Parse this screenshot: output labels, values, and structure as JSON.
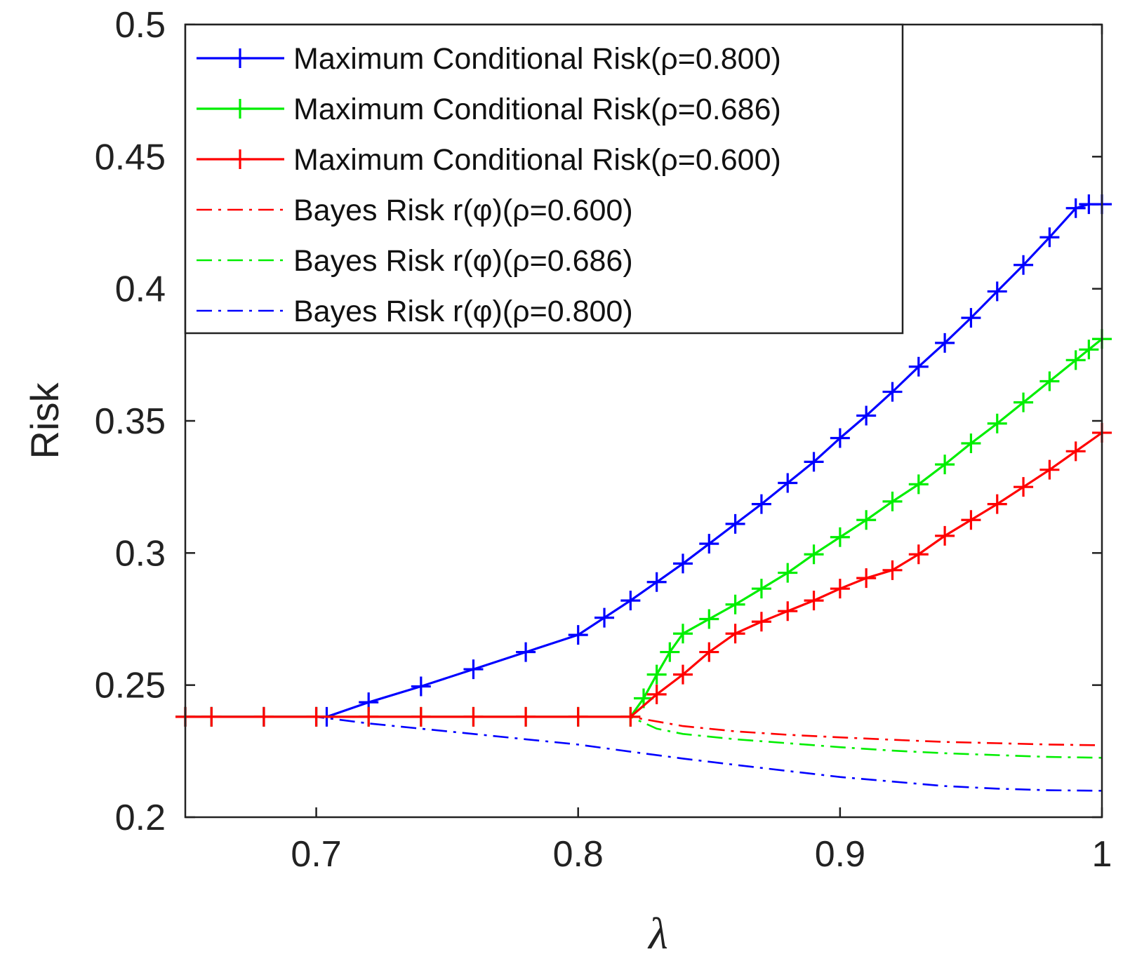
{
  "chart_data": {
    "type": "line",
    "title": "",
    "xlabel": "λ",
    "ylabel": "Risk",
    "xlim": [
      0.65,
      1.0
    ],
    "ylim": [
      0.2,
      0.5
    ],
    "xticks": [
      0.7,
      0.8,
      0.9,
      1.0
    ],
    "xtick_labels": [
      "0.7",
      "0.8",
      "0.9",
      "1"
    ],
    "yticks": [
      0.2,
      0.25,
      0.3,
      0.35,
      0.4,
      0.45,
      0.5
    ],
    "ytick_labels": [
      "0.2",
      "0.25",
      "0.3",
      "0.35",
      "0.4",
      "0.45",
      "0.5"
    ],
    "legend_position": "top-left",
    "series": [
      {
        "name": "Maximum Conditional Risk(ρ=0.800)",
        "style": "solid-plus",
        "color": "#0000ff",
        "x": [
          0.65,
          0.66,
          0.68,
          0.7,
          0.704,
          0.72,
          0.74,
          0.76,
          0.78,
          0.8,
          0.81,
          0.82,
          0.83,
          0.84,
          0.85,
          0.86,
          0.87,
          0.88,
          0.89,
          0.9,
          0.91,
          0.92,
          0.93,
          0.94,
          0.95,
          0.96,
          0.97,
          0.98,
          0.99,
          0.995,
          1.0
        ],
        "y": [
          0.238,
          0.238,
          0.238,
          0.238,
          0.238,
          0.2435,
          0.2495,
          0.256,
          0.2625,
          0.269,
          0.2755,
          0.282,
          0.289,
          0.296,
          0.3035,
          0.311,
          0.3185,
          0.3265,
          0.3345,
          0.3435,
          0.352,
          0.361,
          0.3705,
          0.3795,
          0.389,
          0.399,
          0.409,
          0.4195,
          0.4305,
          0.432,
          0.432
        ]
      },
      {
        "name": "Maximum Conditional Risk(ρ=0.686)",
        "style": "solid-plus",
        "color": "#00ee00",
        "x": [
          0.65,
          0.66,
          0.68,
          0.7,
          0.72,
          0.74,
          0.76,
          0.78,
          0.8,
          0.82,
          0.825,
          0.83,
          0.835,
          0.84,
          0.85,
          0.86,
          0.87,
          0.88,
          0.89,
          0.9,
          0.91,
          0.92,
          0.93,
          0.94,
          0.95,
          0.96,
          0.97,
          0.98,
          0.99,
          0.995,
          1.0
        ],
        "y": [
          0.238,
          0.238,
          0.238,
          0.238,
          0.238,
          0.238,
          0.238,
          0.238,
          0.238,
          0.238,
          0.245,
          0.254,
          0.2625,
          0.2695,
          0.275,
          0.2805,
          0.2865,
          0.2925,
          0.2995,
          0.306,
          0.3125,
          0.3195,
          0.326,
          0.3335,
          0.3415,
          0.349,
          0.357,
          0.365,
          0.373,
          0.377,
          0.381
        ]
      },
      {
        "name": "Maximum Conditional Risk(ρ=0.600)",
        "style": "solid-plus",
        "color": "#ff0000",
        "x": [
          0.65,
          0.66,
          0.68,
          0.7,
          0.72,
          0.74,
          0.76,
          0.78,
          0.8,
          0.82,
          0.83,
          0.84,
          0.85,
          0.86,
          0.87,
          0.88,
          0.89,
          0.9,
          0.91,
          0.92,
          0.93,
          0.94,
          0.95,
          0.96,
          0.97,
          0.98,
          0.99,
          1.0
        ],
        "y": [
          0.238,
          0.238,
          0.238,
          0.238,
          0.238,
          0.238,
          0.238,
          0.238,
          0.238,
          0.238,
          0.2465,
          0.254,
          0.2625,
          0.2695,
          0.274,
          0.278,
          0.282,
          0.2865,
          0.2905,
          0.2935,
          0.2995,
          0.3065,
          0.3125,
          0.3185,
          0.325,
          0.3315,
          0.3385,
          0.3455
        ]
      },
      {
        "name": "Bayes Risk r(φ)(ρ=0.600)",
        "style": "dashdot",
        "color": "#ff0000",
        "x": [
          0.65,
          0.7,
          0.82,
          0.84,
          0.86,
          0.88,
          0.9,
          0.92,
          0.94,
          0.96,
          0.98,
          1.0
        ],
        "y": [
          0.238,
          0.238,
          0.238,
          0.2345,
          0.2325,
          0.2312,
          0.2302,
          0.2293,
          0.2285,
          0.228,
          0.2275,
          0.2272
        ]
      },
      {
        "name": "Bayes Risk r(φ)(ρ=0.686)",
        "style": "dashdot",
        "color": "#00ee00",
        "x": [
          0.65,
          0.7,
          0.82,
          0.83,
          0.84,
          0.86,
          0.88,
          0.9,
          0.92,
          0.94,
          0.96,
          0.98,
          1.0
        ],
        "y": [
          0.238,
          0.238,
          0.238,
          0.2335,
          0.2315,
          0.2295,
          0.228,
          0.2265,
          0.2252,
          0.2242,
          0.2235,
          0.2228,
          0.2225
        ]
      },
      {
        "name": "Bayes Risk r(φ)(ρ=0.800)",
        "style": "dashdot",
        "color": "#0000ff",
        "x": [
          0.65,
          0.7,
          0.72,
          0.74,
          0.76,
          0.78,
          0.8,
          0.82,
          0.84,
          0.86,
          0.88,
          0.9,
          0.92,
          0.94,
          0.96,
          0.98,
          1.0
        ],
        "y": [
          0.238,
          0.238,
          0.2355,
          0.2335,
          0.2315,
          0.2295,
          0.2275,
          0.2248,
          0.2222,
          0.2198,
          0.2175,
          0.2152,
          0.2135,
          0.2118,
          0.2108,
          0.2102,
          0.21
        ]
      }
    ]
  }
}
